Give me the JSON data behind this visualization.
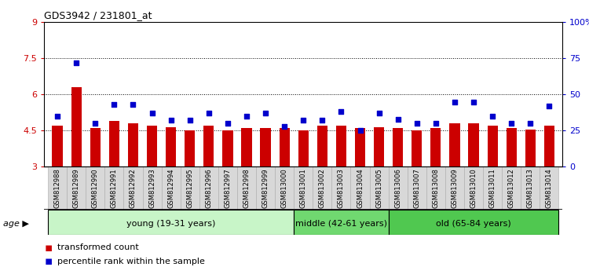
{
  "title": "GDS3942 / 231801_at",
  "samples": [
    "GSM812988",
    "GSM812989",
    "GSM812990",
    "GSM812991",
    "GSM812992",
    "GSM812993",
    "GSM812994",
    "GSM812995",
    "GSM812996",
    "GSM812997",
    "GSM812998",
    "GSM812999",
    "GSM813000",
    "GSM813001",
    "GSM813002",
    "GSM813003",
    "GSM813004",
    "GSM813005",
    "GSM813006",
    "GSM813007",
    "GSM813008",
    "GSM813009",
    "GSM813010",
    "GSM813011",
    "GSM813012",
    "GSM813013",
    "GSM813014"
  ],
  "bar_values": [
    4.7,
    6.3,
    4.6,
    4.9,
    4.8,
    4.7,
    4.65,
    4.5,
    4.7,
    4.5,
    4.6,
    4.6,
    4.6,
    4.5,
    4.7,
    4.7,
    4.6,
    4.65,
    4.6,
    4.5,
    4.6,
    4.8,
    4.8,
    4.7,
    4.6,
    4.55,
    4.7
  ],
  "dot_values": [
    35,
    72,
    30,
    43,
    43,
    37,
    32,
    32,
    37,
    30,
    35,
    37,
    28,
    32,
    32,
    38,
    25,
    37,
    33,
    30,
    30,
    45,
    45,
    35,
    30,
    30,
    42
  ],
  "bar_color": "#cc0000",
  "dot_color": "#0000cc",
  "ylim_left": [
    3,
    9
  ],
  "ylim_right": [
    0,
    100
  ],
  "yticks_left": [
    3,
    4.5,
    6,
    7.5,
    9
  ],
  "yticks_right": [
    0,
    25,
    50,
    75,
    100
  ],
  "ytick_labels_left": [
    "3",
    "4.5",
    "6",
    "7.5",
    "9"
  ],
  "ytick_labels_right": [
    "0",
    "25",
    "50",
    "75",
    "100%"
  ],
  "hlines": [
    4.5,
    6.0,
    7.5
  ],
  "groups": [
    {
      "label": "young (19-31 years)",
      "start": 0,
      "end": 13,
      "color": "#c8f5c8"
    },
    {
      "label": "middle (42-61 years)",
      "start": 13,
      "end": 18,
      "color": "#70d870"
    },
    {
      "label": "old (65-84 years)",
      "start": 18,
      "end": 27,
      "color": "#50c850"
    }
  ],
  "age_label": "age",
  "legend_bar_label": "transformed count",
  "legend_dot_label": "percentile rank within the sample",
  "background_color": "#ffffff",
  "plot_bg_color": "#ffffff",
  "bar_width": 0.55,
  "left_color": "#cc0000",
  "right_color": "#0000cc",
  "tick_label_bg": "#d8d8d8",
  "xlabel_fontsize": 6.0,
  "group_fontsize": 8.0
}
